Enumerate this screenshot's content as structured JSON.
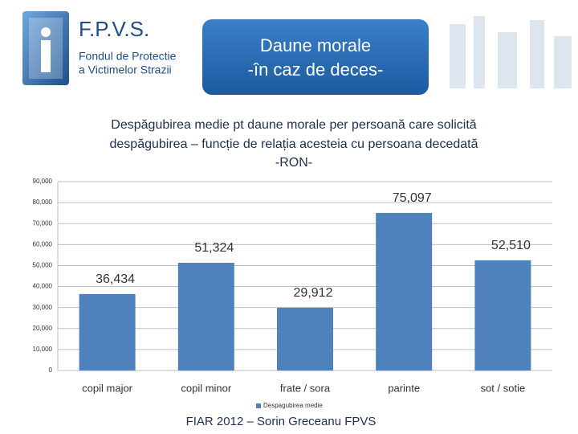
{
  "header": {
    "logo_title": "F.P.V.S.",
    "logo_subtitle": [
      "Fondul de Protectie",
      "a Victimelor Strazii"
    ],
    "banner": [
      "Daune morale",
      "-în caz de deces-"
    ]
  },
  "chart_data": {
    "type": "bar",
    "title": [
      "Despăgubirea medie pt daune morale per persoană care solicită",
      "despăgubirea – funcție de relația acesteia cu persoana decedată",
      "-RON-"
    ],
    "categories": [
      "copil major",
      "copil minor",
      "frate / sora",
      "parinte",
      "sot / sotie"
    ],
    "series": [
      {
        "name": "Despagubirea medie",
        "color": "#4f81bd",
        "values": [
          36434,
          51324,
          29912,
          75097,
          52510
        ],
        "value_labels": [
          "36,434",
          "51,324",
          "29,912",
          "75,097",
          "52,510"
        ]
      }
    ],
    "ylim": [
      0,
      90000
    ],
    "yticks": [
      0,
      {
        "value": 10000,
        "label": "10,000"
      },
      {
        "value": 20000,
        "label": "20,000"
      },
      {
        "value": 30000,
        "label": "30,000"
      },
      {
        "value": 40000,
        "label": "40,000"
      },
      {
        "value": 50000,
        "label": "50,000"
      },
      {
        "value": 60000,
        "label": "60,000"
      },
      {
        "value": 70000,
        "label": "70,000"
      },
      {
        "value": 80000,
        "label": "80,000"
      },
      {
        "value": 90000,
        "label": "90,000"
      }
    ],
    "grid": true,
    "legend": "bottom"
  },
  "footer": "FIAR 2012 – Sorin Greceanu FPVS"
}
